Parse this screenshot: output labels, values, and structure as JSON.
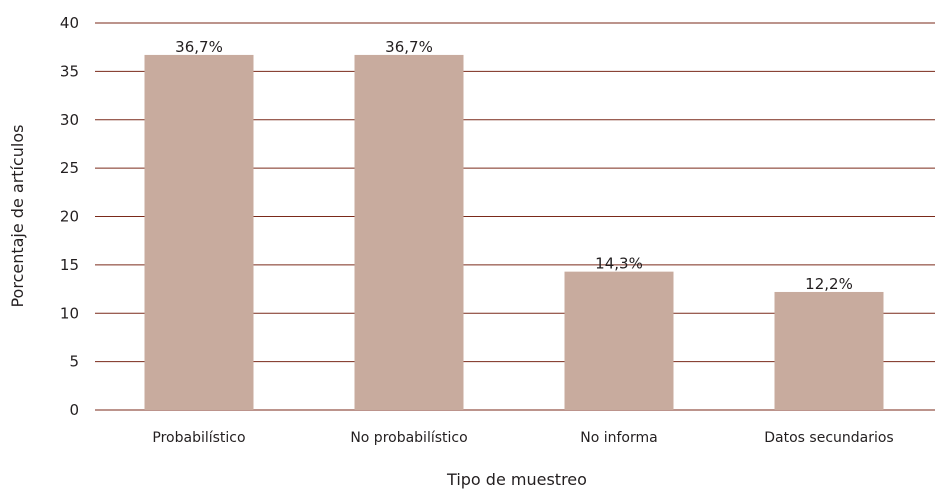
{
  "chart_data": {
    "type": "bar",
    "title": "",
    "xlabel": "Tipo de muestreo",
    "ylabel": "Porcentaje de artículos",
    "categories": [
      "Probabilístico",
      "No probabilístico",
      "No informa",
      "Datos secundarios"
    ],
    "values": [
      36.7,
      36.7,
      14.3,
      12.2
    ],
    "data_labels": [
      "36,7%",
      "36,7%",
      "14,3%",
      "12,2%"
    ],
    "ylim": [
      0,
      40
    ],
    "yticks": [
      0,
      5,
      10,
      15,
      20,
      25,
      30,
      35,
      40
    ],
    "grid": true,
    "legend": "none",
    "colors": {
      "bar": "#c8ab9e",
      "grid": "#7a2a1a",
      "axis": "#7a2a1a",
      "text": "#231f20"
    }
  }
}
